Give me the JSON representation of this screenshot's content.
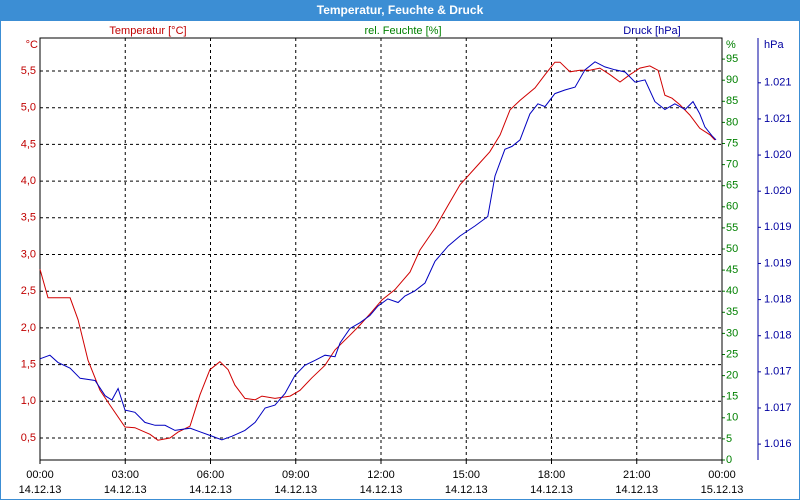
{
  "chart_data": {
    "type": "line",
    "title": "Temperatur, Feuchte & Druck",
    "ylabel": "Temperatur [°C]",
    "yunit": "°C",
    "ycolor": "#c00000",
    "y2label": "rel. Feuchte [%]",
    "y2unit": "%",
    "y2color": "#008000",
    "y3label": "Druck [hPa]",
    "y3unit": "hPa",
    "y3color": "#0000a0",
    "grid": true,
    "xlim": [
      0,
      24
    ],
    "xticks": [
      {
        "value": 0,
        "label": "00:00",
        "date": "14.12.13"
      },
      {
        "value": 3,
        "label": "03:00",
        "date": "14.12.13"
      },
      {
        "value": 6,
        "label": "06:00",
        "date": "14.12.13"
      },
      {
        "value": 9,
        "label": "09:00",
        "date": "14.12.13"
      },
      {
        "value": 12,
        "label": "12:00",
        "date": "14.12.13"
      },
      {
        "value": 15,
        "label": "15:00",
        "date": "14.12.13"
      },
      {
        "value": 18,
        "label": "18:00",
        "date": "14.12.13"
      },
      {
        "value": 21,
        "label": "21:00",
        "date": "14.12.13"
      },
      {
        "value": 24,
        "label": "00:00",
        "date": "15.12.13"
      }
    ],
    "ylim": [
      0.2,
      5.95
    ],
    "yticks": [
      {
        "value": 0.5,
        "label": "0,5"
      },
      {
        "value": 1.0,
        "label": "1,0"
      },
      {
        "value": 1.5,
        "label": "1,5"
      },
      {
        "value": 2.0,
        "label": "2,0"
      },
      {
        "value": 2.5,
        "label": "2,5"
      },
      {
        "value": 3.0,
        "label": "3,0"
      },
      {
        "value": 3.5,
        "label": "3,5"
      },
      {
        "value": 4.0,
        "label": "4,0"
      },
      {
        "value": 4.5,
        "label": "4,5"
      },
      {
        "value": 5.0,
        "label": "5,0"
      },
      {
        "value": 5.5,
        "label": "5,5"
      }
    ],
    "y2lim": [
      0,
      100
    ],
    "y2ticks": [
      0,
      5,
      10,
      15,
      20,
      25,
      30,
      35,
      40,
      45,
      50,
      55,
      60,
      65,
      70,
      75,
      80,
      85,
      90,
      95
    ],
    "y3lim": [
      1015.78,
      1021.62
    ],
    "y3ticks": [
      {
        "value": 1016.0,
        "label": "1.016"
      },
      {
        "value": 1016.5,
        "label": "1.017"
      },
      {
        "value": 1017.0,
        "label": "1.017"
      },
      {
        "value": 1017.5,
        "label": "1.018"
      },
      {
        "value": 1018.0,
        "label": "1.018"
      },
      {
        "value": 1018.5,
        "label": "1.019"
      },
      {
        "value": 1019.0,
        "label": "1.019"
      },
      {
        "value": 1019.5,
        "label": "1.020"
      },
      {
        "value": 1020.0,
        "label": "1.020"
      },
      {
        "value": 1020.5,
        "label": "1.021"
      },
      {
        "value": 1021.0,
        "label": "1.021"
      }
    ],
    "series": [
      {
        "name": "Temperatur",
        "color": "#d00000",
        "axis": "y",
        "x": [
          0,
          0.28,
          1.06,
          1.34,
          1.69,
          2.11,
          2.46,
          2.99,
          3.34,
          3.87,
          4.15,
          4.57,
          4.86,
          5.28,
          5.63,
          5.98,
          6.33,
          6.62,
          6.86,
          7.21,
          7.57,
          7.81,
          8.27,
          8.8,
          9.15,
          9.57,
          10.03,
          10.38,
          10.91,
          11.26,
          11.68,
          12.03,
          12.49,
          13.02,
          13.37,
          13.9,
          14.36,
          14.78,
          15.41,
          15.83,
          16.19,
          16.54,
          16.89,
          17.42,
          17.77,
          18.12,
          18.3,
          18.65,
          19.0,
          19.35,
          19.7,
          20.06,
          20.41,
          20.76,
          21.11,
          21.46,
          21.75,
          21.99,
          22.24,
          22.52,
          22.87,
          23.22,
          23.58,
          23.75
        ],
        "values": [
          2.8,
          2.41,
          2.41,
          2.11,
          1.56,
          1.15,
          0.95,
          0.65,
          0.64,
          0.55,
          0.47,
          0.5,
          0.58,
          0.66,
          1.09,
          1.43,
          1.54,
          1.43,
          1.22,
          1.04,
          1.02,
          1.07,
          1.04,
          1.07,
          1.15,
          1.32,
          1.49,
          1.7,
          1.9,
          2.04,
          2.22,
          2.38,
          2.52,
          2.76,
          3.06,
          3.36,
          3.67,
          3.95,
          4.22,
          4.4,
          4.63,
          4.97,
          5.1,
          5.27,
          5.45,
          5.62,
          5.62,
          5.49,
          5.51,
          5.51,
          5.54,
          5.45,
          5.35,
          5.45,
          5.54,
          5.57,
          5.51,
          5.17,
          5.13,
          5.04,
          4.9,
          4.72,
          4.63,
          4.56
        ]
      },
      {
        "name": "Druck",
        "color": "#0000c0",
        "axis": "y3",
        "x": [
          0,
          0.35,
          0.63,
          1.06,
          1.41,
          1.94,
          2.29,
          2.53,
          2.75,
          2.99,
          3.34,
          3.69,
          4.05,
          4.4,
          4.75,
          5.28,
          5.63,
          5.98,
          6.4,
          6.76,
          7.21,
          7.57,
          7.92,
          8.27,
          8.62,
          8.97,
          9.32,
          9.68,
          10.03,
          10.38,
          10.56,
          10.91,
          11.26,
          11.61,
          11.89,
          12.24,
          12.6,
          12.84,
          13.19,
          13.55,
          13.9,
          14.36,
          14.78,
          15.31,
          15.76,
          16.01,
          16.36,
          16.61,
          16.89,
          17.24,
          17.52,
          17.77,
          18.12,
          18.47,
          18.83,
          19.18,
          19.53,
          19.88,
          20.23,
          20.59,
          20.94,
          21.29,
          21.64,
          21.99,
          22.34,
          22.7,
          22.98,
          23.22,
          23.4,
          23.64,
          23.79
        ],
        "values": [
          1017.18,
          1017.23,
          1017.13,
          1017.05,
          1016.91,
          1016.88,
          1016.67,
          1016.61,
          1016.77,
          1016.47,
          1016.44,
          1016.3,
          1016.26,
          1016.26,
          1016.19,
          1016.22,
          1016.17,
          1016.12,
          1016.06,
          1016.11,
          1016.19,
          1016.3,
          1016.5,
          1016.54,
          1016.7,
          1016.95,
          1017.09,
          1017.16,
          1017.23,
          1017.21,
          1017.4,
          1017.6,
          1017.68,
          1017.78,
          1017.91,
          1018.01,
          1017.96,
          1018.05,
          1018.12,
          1018.23,
          1018.53,
          1018.74,
          1018.88,
          1019.02,
          1019.15,
          1019.71,
          1020.08,
          1020.12,
          1020.21,
          1020.57,
          1020.71,
          1020.67,
          1020.85,
          1020.9,
          1020.94,
          1021.18,
          1021.29,
          1021.22,
          1021.18,
          1021.15,
          1021.01,
          1021.04,
          1020.74,
          1020.63,
          1020.71,
          1020.63,
          1020.74,
          1020.57,
          1020.39,
          1020.27,
          1020.21
        ]
      }
    ]
  }
}
